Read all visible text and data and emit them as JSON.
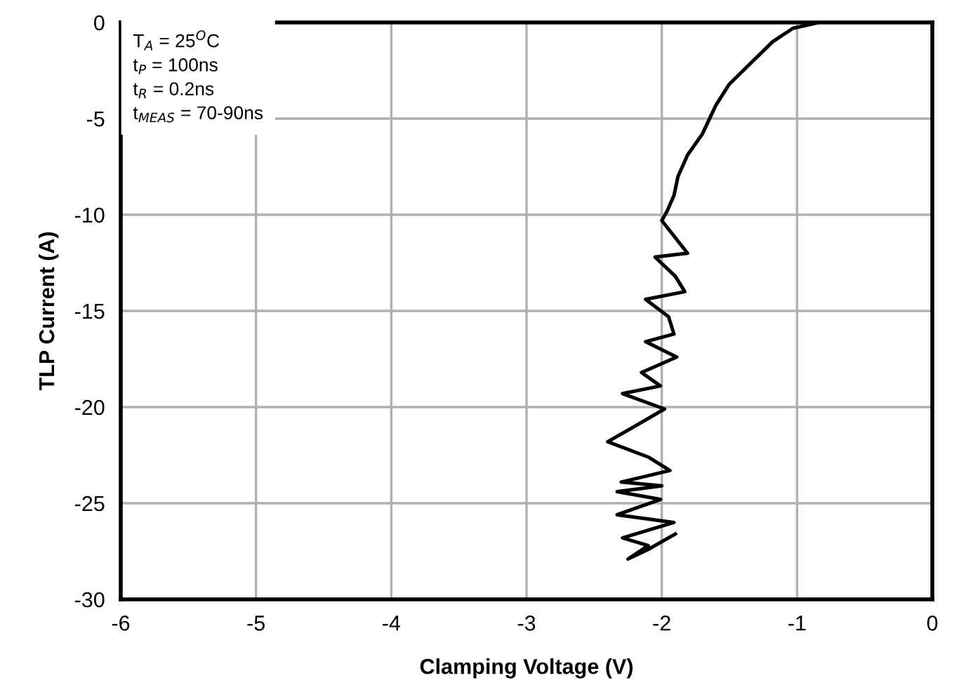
{
  "chart_data": {
    "type": "line",
    "xlabel": "Clamping Voltage (V)",
    "ylabel": "TLP Current (A)",
    "xlim": [
      -6,
      0
    ],
    "xticks": [
      -6,
      -5,
      -4,
      -3,
      -2,
      -1,
      0
    ],
    "ylim": [
      -30,
      0
    ],
    "yticks": [
      -30,
      -25,
      -20,
      -15,
      -10,
      -5,
      0
    ],
    "grid": true,
    "legend": false,
    "marker": "none",
    "line_style": "solid",
    "annotations": [
      "T$_{A}$ = 25$^{O}$C",
      "t$_{P}$ = 100ns",
      "t$_{R}$ = 0.2ns",
      "t$_{MEAS}$ = 70-90ns"
    ],
    "series": [
      {
        "color": "#000000",
        "x": [
          -0.84,
          -1.03,
          -1.18,
          -1.34,
          -1.5,
          -1.6,
          -1.7,
          -1.81,
          -1.88,
          -1.91,
          -1.96,
          -2.0,
          -1.81,
          -2.05,
          -1.9,
          -1.83,
          -2.12,
          -1.95,
          -1.91,
          -2.12,
          -1.89,
          -2.15,
          -2.01,
          -2.29,
          -1.98,
          -2.2,
          -2.4,
          -2.1,
          -1.94,
          -2.3,
          -2.0,
          -2.33,
          -2.01,
          -2.33,
          -1.91,
          -2.29,
          -2.1,
          -2.25,
          -2.1,
          -1.9
        ],
        "values": [
          0,
          -0.3,
          -1.0,
          -2.1,
          -3.2,
          -4.3,
          -5.8,
          -6.9,
          -8.0,
          -9.0,
          -9.8,
          -10.3,
          -12.0,
          -12.2,
          -13.2,
          -14.0,
          -14.4,
          -15.3,
          -16.2,
          -16.6,
          -17.4,
          -18.2,
          -18.9,
          -19.3,
          -20.1,
          -21.0,
          -21.8,
          -22.6,
          -23.3,
          -23.9,
          -24.1,
          -24.4,
          -24.8,
          -25.6,
          -26.0,
          -26.8,
          -27.2,
          -27.9,
          -27.4,
          -26.6
        ]
      }
    ]
  }
}
